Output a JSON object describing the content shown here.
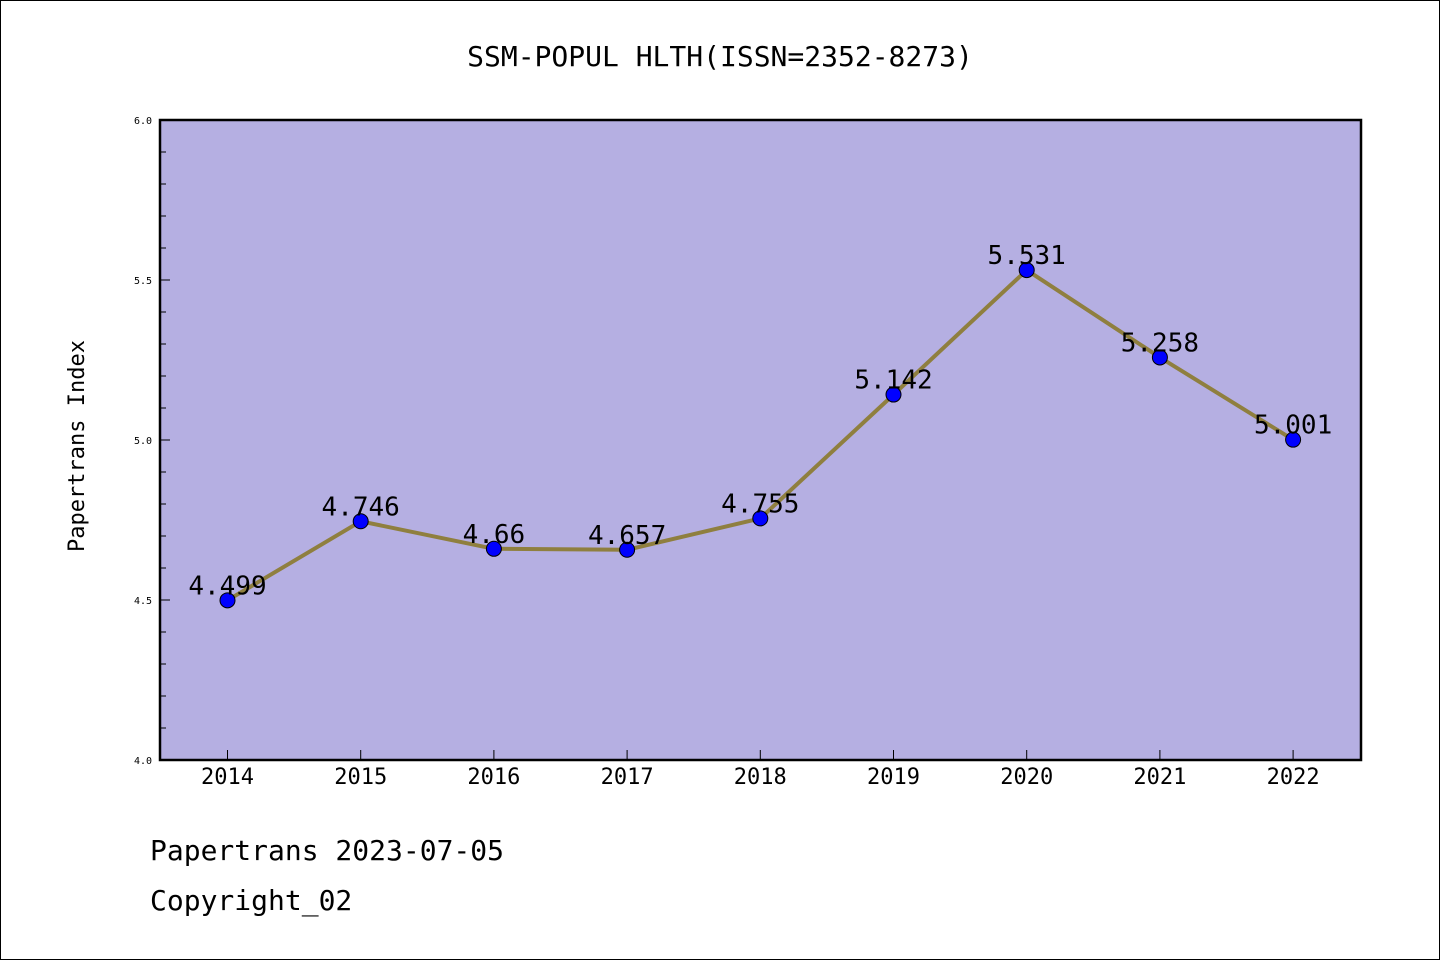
{
  "chart_data": {
    "type": "line",
    "title": "SSM-POPUL HLTH(ISSN=2352-8273)",
    "ylabel": "Papertrans Index",
    "xlabel": "",
    "x": [
      "2014",
      "2015",
      "2016",
      "2017",
      "2018",
      "2019",
      "2020",
      "2021",
      "2022"
    ],
    "series": [
      {
        "values": [
          4.499,
          4.746,
          4.66,
          4.657,
          4.755,
          5.142,
          5.531,
          5.258,
          5.001
        ],
        "labels": [
          "4.499",
          "4.746",
          "4.66",
          "4.657",
          "4.755",
          "5.142",
          "5.531",
          "5.258",
          "5.001"
        ]
      }
    ],
    "ylim": [
      4.0,
      6.0
    ],
    "yticks": [
      "4.0",
      "4.5",
      "5.0",
      "5.5",
      "6.0"
    ],
    "grid": false,
    "colors": {
      "plot_background": "#b5afe2",
      "line": "#8f7f3f",
      "marker": "#0000ff"
    }
  },
  "footer": {
    "line1": "Papertrans 2023-07-05",
    "line2": "Copyright_02"
  }
}
